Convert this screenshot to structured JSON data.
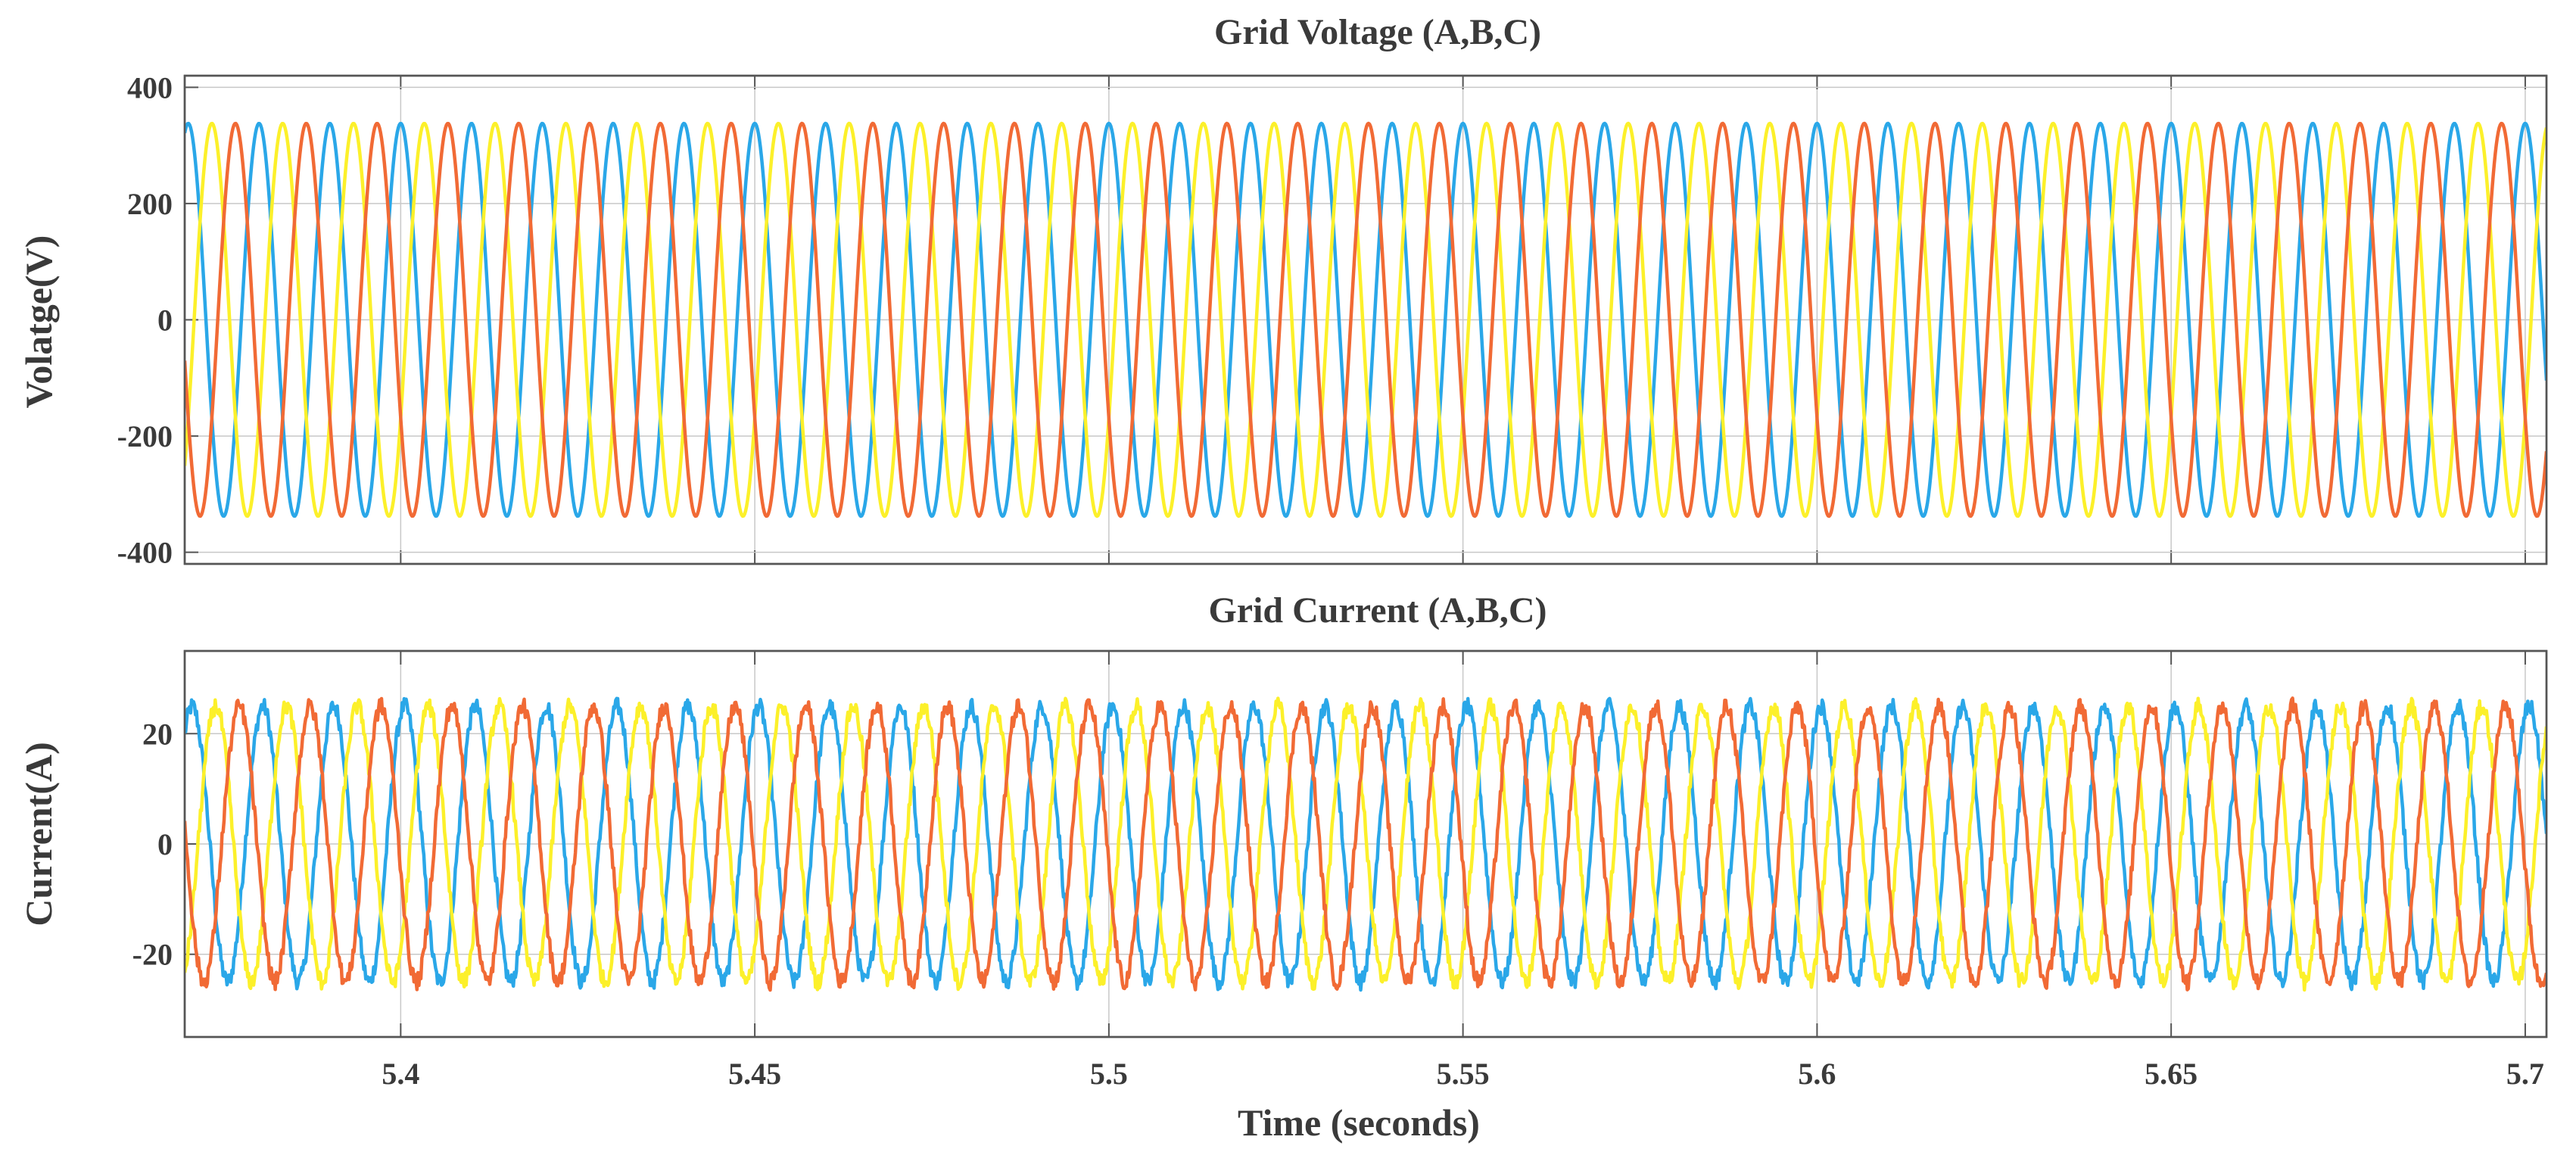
{
  "chart_data": [
    {
      "type": "line",
      "title": "Grid Voltage (A,B,C)",
      "xlabel": "",
      "ylabel": "Volatge(V)",
      "xlim": [
        5.3695,
        5.703
      ],
      "ylim": [
        -420,
        420
      ],
      "yticks": [
        400,
        200,
        0,
        -200,
        -400
      ],
      "ytick_labels": [
        "400",
        "200",
        "0",
        "-200",
        "-400"
      ],
      "xticks": [
        5.4,
        5.45,
        5.5,
        5.55,
        5.6,
        5.65,
        5.7
      ],
      "xtick_labels": [],
      "grid": true,
      "legend": "none",
      "signal": {
        "frequency_hz": 100,
        "amplitude": 338,
        "noise": 0
      },
      "series": [
        {
          "phase_deg": 90,
          "color": "#2aa7e8"
        },
        {
          "phase_deg": -30,
          "color": "#fcf02a"
        },
        {
          "phase_deg": 210,
          "color": "#f16a35"
        }
      ]
    },
    {
      "type": "line",
      "title": "Grid Current (A,B,C)",
      "xlabel": "Time (seconds)",
      "ylabel": "Current(A)",
      "xlim": [
        5.3695,
        5.703
      ],
      "ylim": [
        -35,
        35
      ],
      "yticks": [
        20,
        0,
        -20
      ],
      "ytick_labels": [
        "20",
        "0",
        "-20"
      ],
      "xticks": [
        5.4,
        5.45,
        5.5,
        5.55,
        5.6,
        5.65,
        5.7
      ],
      "xtick_labels": [
        "5.4",
        "5.45",
        "5.5",
        "5.55",
        "5.6",
        "5.65",
        "5.7"
      ],
      "grid": true,
      "legend": "none",
      "signal": {
        "frequency_hz": 100,
        "amplitude": 25,
        "noise": 1.5
      },
      "series": [
        {
          "phase_deg": 70,
          "color": "#2aa7e8"
        },
        {
          "phase_deg": -50,
          "color": "#fcf02a"
        },
        {
          "phase_deg": 190,
          "color": "#f16a35"
        }
      ]
    }
  ]
}
